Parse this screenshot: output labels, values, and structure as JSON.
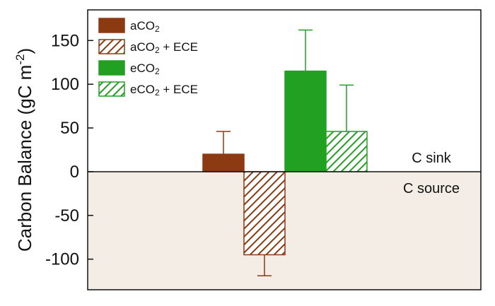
{
  "chart_data": {
    "type": "bar",
    "title": "",
    "xlabel": "",
    "ylabel": "Carbon Balance (gC m",
    "ylabel_superscript": "-2",
    "ylabel_close": ")",
    "ylim": [
      -135,
      185
    ],
    "yticks": [
      150,
      100,
      50,
      0,
      -50,
      -100
    ],
    "yticklabels": [
      "150",
      "100",
      "50",
      "0",
      "-50",
      "-100"
    ],
    "grid": false,
    "legend_position": "top-left",
    "series": [
      {
        "name": "aCO2",
        "name_base": "aCO",
        "name_sub": "2",
        "name_suffix": "",
        "value": 20,
        "error": 26,
        "color": "#8B3A12",
        "hatched": false
      },
      {
        "name": "aCO2 + ECE",
        "name_base": "aCO",
        "name_sub": "2",
        "name_suffix": " + ECE",
        "value": -95,
        "error": 24,
        "color": "#8B3A12",
        "hatched": true
      },
      {
        "name": "eCO2",
        "name_base": "eCO",
        "name_sub": "2",
        "name_suffix": "",
        "value": 115,
        "error": 47,
        "color": "#22A022",
        "hatched": false
      },
      {
        "name": "eCO2 + ECE",
        "name_base": "eCO",
        "name_sub": "2",
        "name_suffix": " + ECE",
        "value": 46,
        "error": 53,
        "color": "#22A022",
        "hatched": true
      }
    ],
    "annotations": {
      "sink": "C sink",
      "source": "C source"
    },
    "negative_region_color": "#F3EDE6"
  }
}
